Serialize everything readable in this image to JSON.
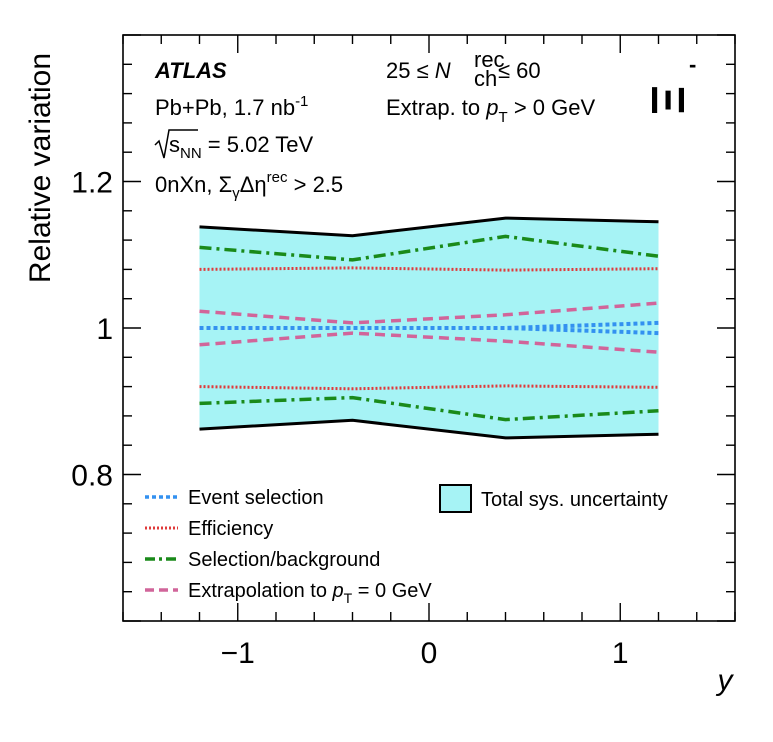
{
  "chart_data": {
    "type": "line",
    "ylabel": "Relative variation",
    "xlabel": "y",
    "xlim": [
      -1.6,
      1.6
    ],
    "ylim": [
      0.6,
      1.4
    ],
    "x_ticks": [
      -1,
      0,
      1
    ],
    "x_tick_labels": [
      "−1",
      "0",
      "1"
    ],
    "y_ticks": [
      0.8,
      1.0,
      1.2
    ],
    "y_tick_labels": [
      "0.8",
      "1",
      "1.2"
    ],
    "x": [
      -1.2,
      -0.4,
      0.4,
      1.2
    ],
    "band": {
      "name": "Total sys. uncertainty",
      "upper": [
        1.138,
        1.126,
        1.15,
        1.145
      ],
      "lower": [
        0.862,
        0.874,
        0.85,
        0.855
      ],
      "fill": "#a6f3f5",
      "edge": "#000000"
    },
    "series": [
      {
        "name": "Event selection",
        "style": "dotted-thick",
        "color": "#3391f0",
        "upper": [
          1.0,
          1.0,
          1.0,
          1.007
        ],
        "lower": [
          1.0,
          1.0,
          1.0,
          0.993
        ]
      },
      {
        "name": "Efficiency",
        "style": "dotted",
        "color": "#e03a3a",
        "upper": [
          1.08,
          1.082,
          1.079,
          1.081
        ],
        "lower": [
          0.92,
          0.917,
          0.921,
          0.919
        ]
      },
      {
        "name": "Selection/background",
        "style": "dashdot",
        "color": "#1a8a1a",
        "upper": [
          1.11,
          1.093,
          1.125,
          1.098
        ],
        "lower": [
          0.897,
          0.905,
          0.875,
          0.887
        ]
      },
      {
        "name": "Extrapolation to p_T = 0 GeV",
        "style": "dashed",
        "color": "#d1659a",
        "upper": [
          1.023,
          1.007,
          1.018,
          1.034
        ],
        "lower": [
          0.977,
          0.993,
          0.982,
          0.967
        ]
      }
    ],
    "legend": [
      {
        "label": "Event selection",
        "color": "#3391f0",
        "style": "dotted-thick"
      },
      {
        "label": "Efficiency",
        "color": "#e03a3a",
        "style": "dotted"
      },
      {
        "label": "Selection/background",
        "color": "#1a8a1a",
        "style": "dashdot"
      },
      {
        "label_prefix": "Extrapolation to ",
        "p": "p",
        "sub": "T",
        "label_suffix": " = 0 GeV",
        "color": "#d1659a",
        "style": "dashed"
      }
    ],
    "annotations": {
      "atlas": "ATLAS",
      "system_prefix": "Pb+Pb, 1.7 nb",
      "system_exp": "-1",
      "sqrt_s": "s",
      "sqrt_sub": "NN",
      "energy": " = 5.02 TeV",
      "gap_prefix": "0nXn, Σ",
      "gap_sub": "γ",
      "gap_mid": "Δη",
      "gap_sup": "rec",
      "gap_suffix": " > 2.5",
      "mult_left": "25 ≤ ",
      "mult_N": "N",
      "mult_sup": "rec",
      "mult_sub": "ch",
      "mult_right": " ≤ 60",
      "extrap_prefix": "Extrap. to ",
      "extrap_p": "p",
      "extrap_sub": "T",
      "extrap_suffix": " > 0 GeV",
      "particle": "Ξ",
      "particle_sup": "-"
    }
  }
}
